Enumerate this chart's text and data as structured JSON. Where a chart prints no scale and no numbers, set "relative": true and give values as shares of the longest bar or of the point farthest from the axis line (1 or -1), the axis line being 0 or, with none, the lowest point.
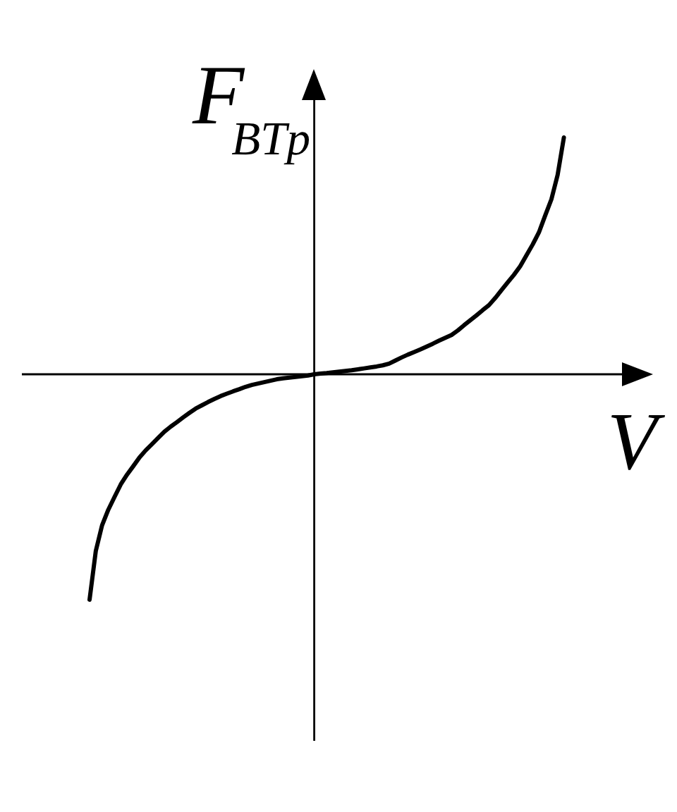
{
  "chart_data": {
    "type": "line",
    "relative": true,
    "xlabel": "V",
    "ylabel": "F$_{BTp}$",
    "color": "#000000",
    "categories": [
      null,
      null,
      null,
      null,
      null,
      null,
      null,
      null,
      null,
      null,
      null,
      null,
      null,
      null,
      null,
      null,
      null,
      null,
      null,
      null,
      null,
      null,
      null,
      null,
      null,
      null,
      null,
      null,
      null,
      null,
      null,
      null,
      null,
      null,
      null,
      null,
      null,
      null,
      null,
      null,
      null,
      null,
      null,
      null,
      null,
      null,
      null,
      null,
      null,
      null,
      null,
      null,
      null,
      null,
      null,
      null,
      null,
      null,
      null,
      null,
      null,
      null,
      null,
      null,
      null,
      null,
      null,
      null,
      null,
      null,
      null,
      null,
      null,
      null,
      null,
      null,
      null
    ],
    "values": [
      -0.952,
      -0.746,
      -0.638,
      -0.572,
      -0.518,
      -0.465,
      -0.424,
      -0.388,
      -0.351,
      -0.321,
      -0.295,
      -0.268,
      -0.242,
      -0.221,
      -0.202,
      -0.182,
      -0.163,
      -0.145,
      -0.131,
      -0.117,
      -0.104,
      -0.092,
      -0.082,
      -0.072,
      -0.063,
      -0.053,
      -0.045,
      -0.039,
      -0.033,
      -0.027,
      -0.021,
      -0.017,
      -0.014,
      -0.011,
      -0.008,
      -0.005,
      0,
      0.003,
      0.005,
      0.008,
      0.011,
      0.014,
      0.017,
      0.021,
      0.025,
      0.029,
      0.033,
      0.038,
      0.045,
      0.058,
      0.071,
      0.083,
      0.094,
      0.105,
      0.117,
      0.129,
      0.142,
      0.154,
      0.166,
      0.185,
      0.207,
      0.228,
      0.249,
      0.271,
      0.292,
      0.322,
      0.355,
      0.388,
      0.42,
      0.456,
      0.502,
      0.548,
      0.599,
      0.67,
      0.739,
      0.842,
      1
    ]
  }
}
